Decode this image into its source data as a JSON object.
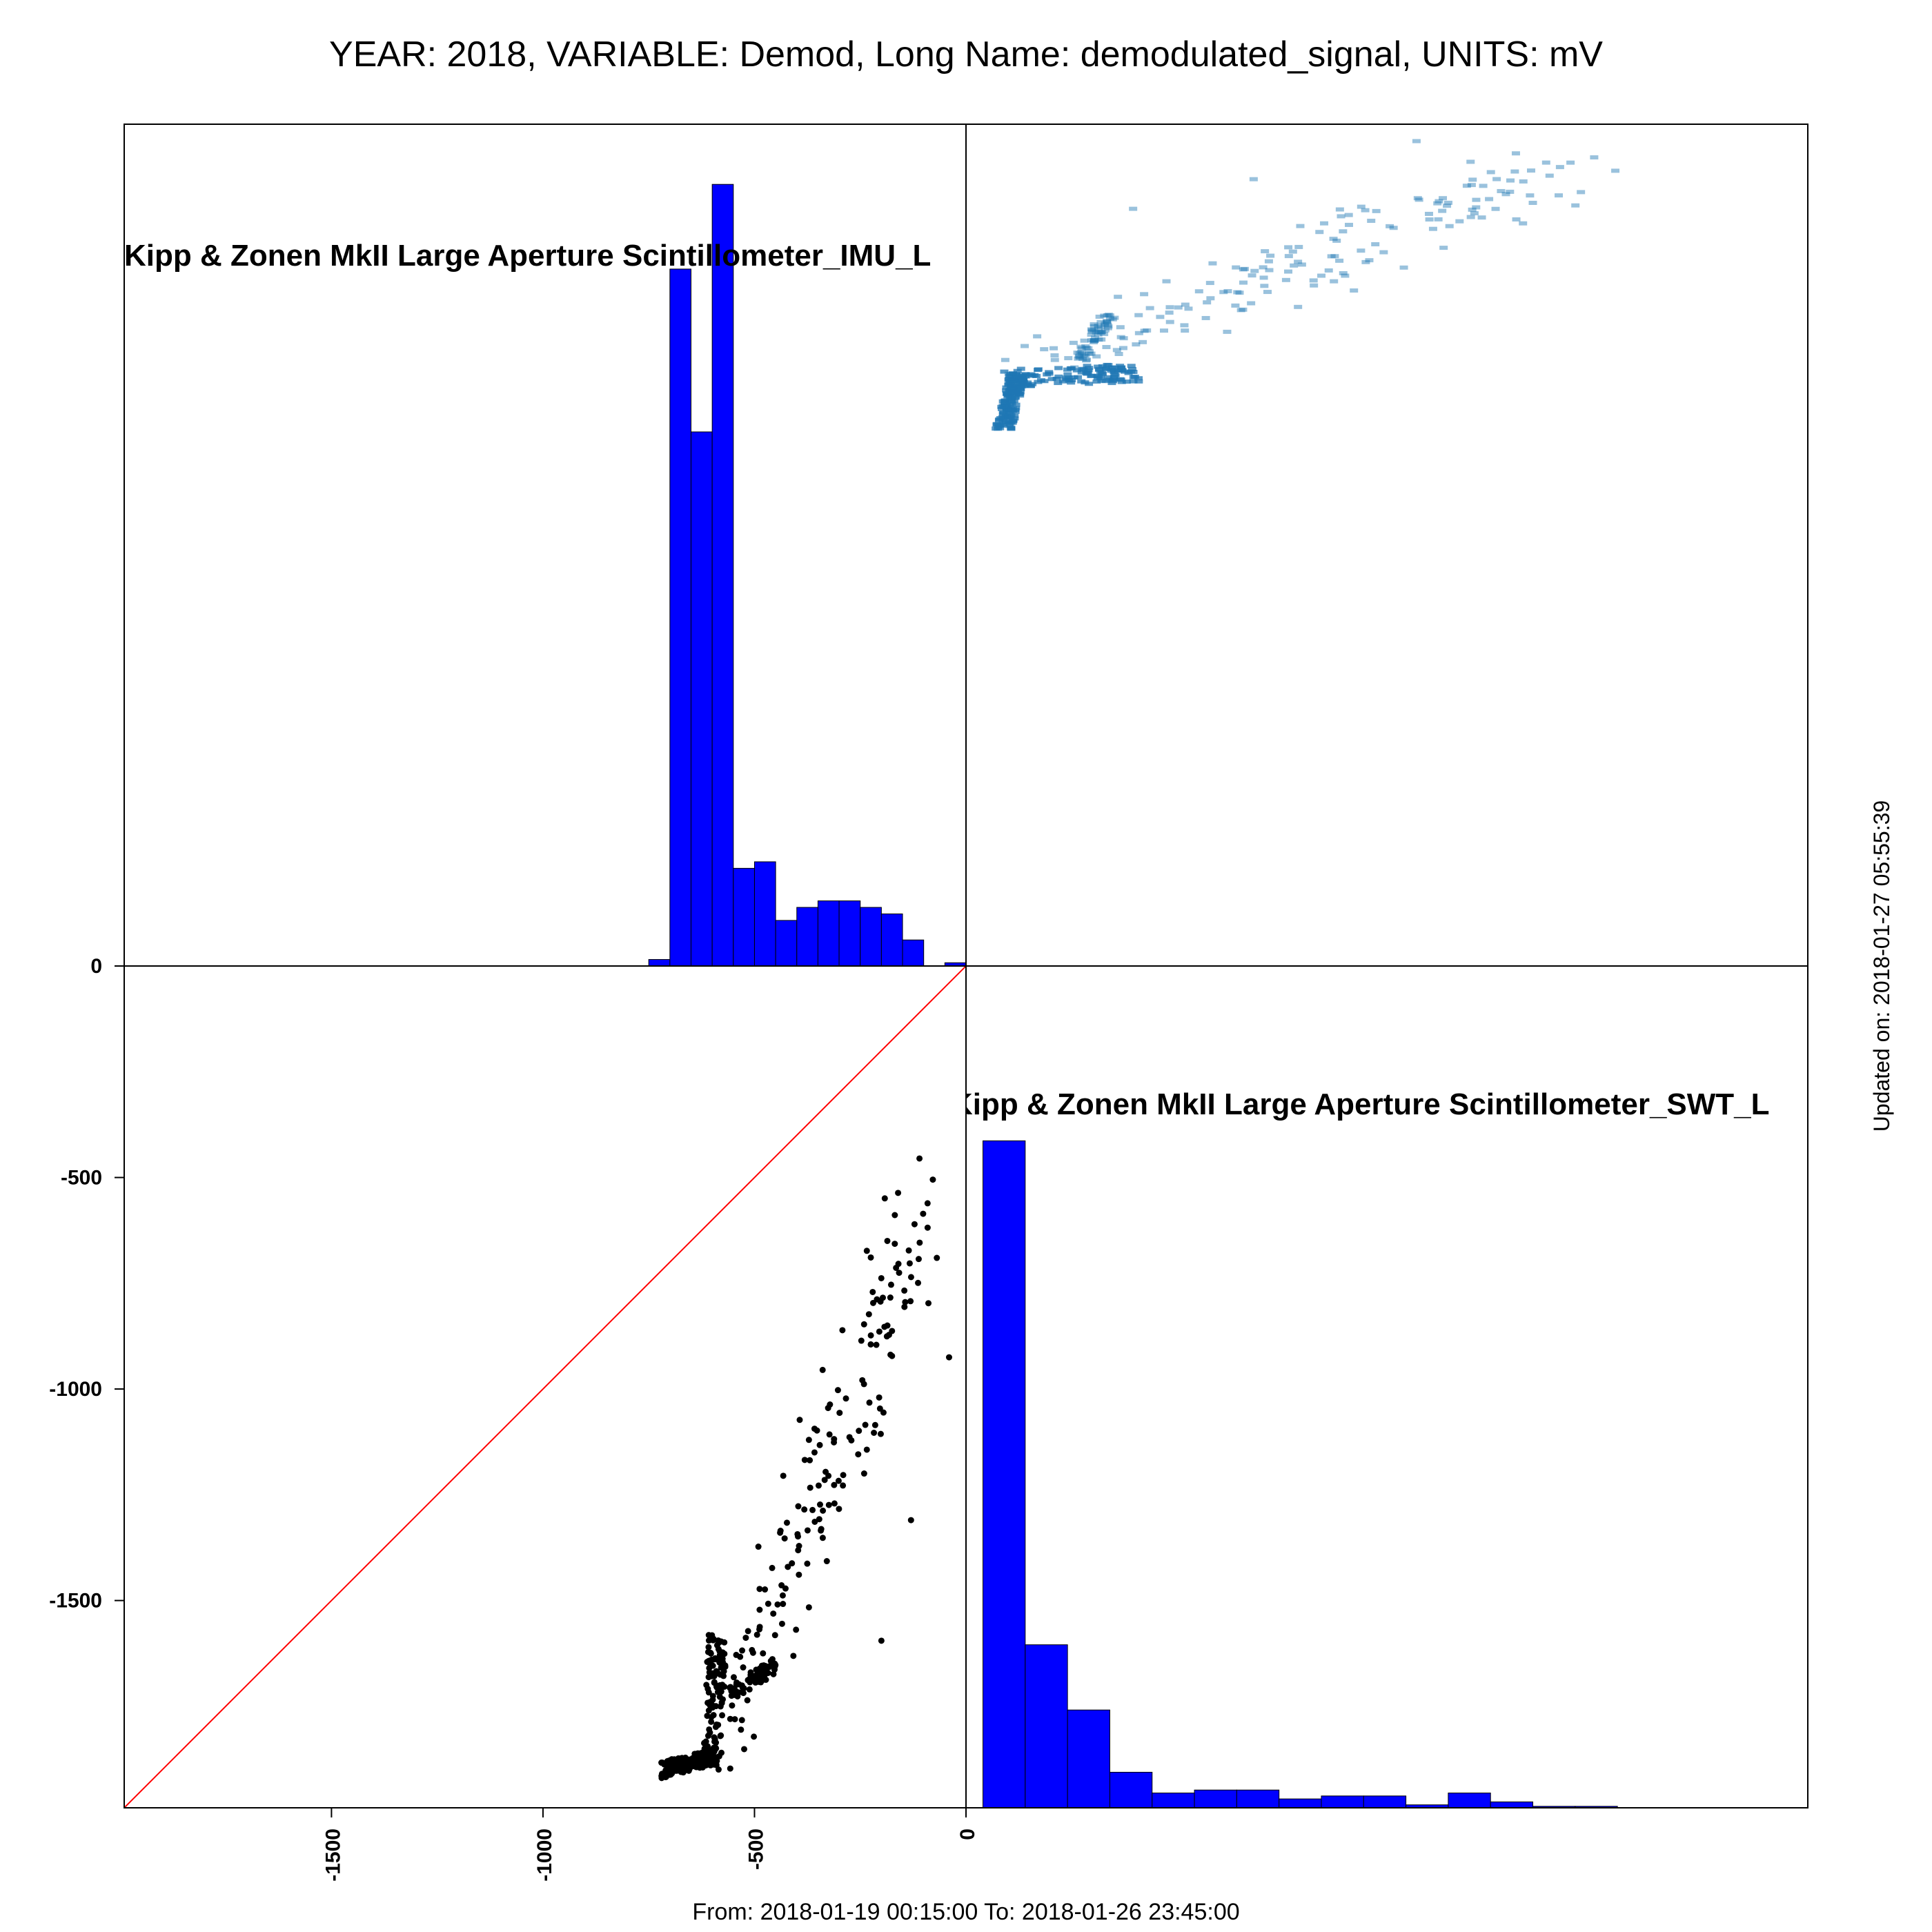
{
  "title": "YEAR: 2018, VARIABLE: Demod, Long Name: demodulated_signal, UNITS: mV",
  "footer": "From: 2018-01-19 00:15:00 To: 2018-01-26 23:45:00",
  "updated": "Updated on: 2018-01-27 05:55:39",
  "colors": {
    "hist": "#0000ff",
    "scatter": "#000000",
    "diag": "#ff0000",
    "density": "#1f77b4",
    "frame": "#000000"
  },
  "chart_data": [
    {
      "type": "bar",
      "panel": "top-left",
      "label": "Kipp & Zonen MkII Large Aperture Scintillometer_IMU_L",
      "bin_edges": [
        -750,
        -700,
        -650,
        -600,
        -550,
        -500,
        -450,
        -400,
        -350,
        -300,
        -250,
        -200,
        -150,
        -100,
        -50,
        0
      ],
      "counts": [
        1,
        107,
        82,
        120,
        15,
        16,
        7,
        9,
        10,
        10,
        9,
        8,
        4,
        0,
        0.5
      ],
      "ylim": [
        0,
        125
      ]
    },
    {
      "type": "heatmap",
      "panel": "top-right",
      "description_free": true,
      "xlim": [
        -1990,
        0
      ],
      "ylim": [
        -1990,
        0
      ]
    },
    {
      "type": "scatter",
      "panel": "bottom-left",
      "xlim": [
        -1990,
        0
      ],
      "ylim": [
        -1990,
        0
      ],
      "x_ticks": [
        "-1500",
        "-1000",
        "-500",
        "0"
      ],
      "y_ticks": [
        "0",
        "-500",
        "-1000",
        "-1500"
      ],
      "identity_line": true
    },
    {
      "type": "bar",
      "panel": "bottom-right",
      "label": "Kipp & Zonen MkII Large Aperture Scintillometer_SWT_L",
      "bin_edges": [
        -1950,
        -1850,
        -1750,
        -1650,
        -1550,
        -1450,
        -1350,
        -1250,
        -1150,
        -1050,
        -950,
        -850,
        -750,
        -650,
        -550,
        -450
      ],
      "counts": [
        225,
        55,
        33,
        12,
        5,
        6,
        6,
        3,
        4,
        4,
        1,
        5,
        2,
        0.5,
        0.5
      ],
      "ylim": [
        0,
        270
      ]
    }
  ]
}
